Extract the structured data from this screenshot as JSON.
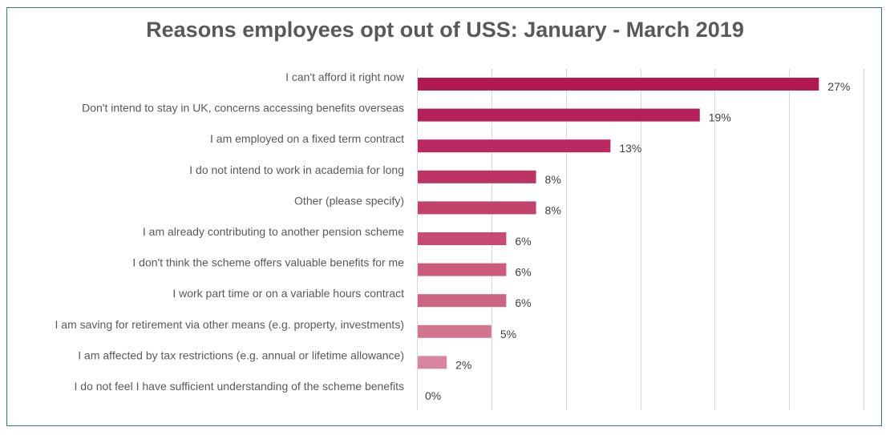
{
  "chart_data": {
    "type": "bar",
    "orientation": "horizontal",
    "title": "Reasons employees opt out of USS: January - March 2019",
    "xlabel": "",
    "ylabel": "",
    "xlim": [
      0,
      30
    ],
    "grid": true,
    "gridline_step": 5,
    "categories": [
      "I can't afford it right now",
      "Don't intend to stay in UK, concerns accessing benefits overseas",
      "I am employed on a fixed term contract",
      "I do not intend to work in academia for long",
      "Other (please specify)",
      "I am already contributing to another pension scheme",
      "I don't think the scheme offers valuable benefits for me",
      "I work part time or on a variable hours contract",
      "I am saving for retirement via other means (e.g. property, investments)",
      "I am affected by tax restrictions (e.g. annual or lifetime allowance)",
      "I do not feel I have sufficient understanding of the scheme benefits"
    ],
    "values": [
      27,
      19,
      13,
      8,
      8,
      6,
      6,
      6,
      5,
      2,
      0
    ],
    "data_labels": [
      "27%",
      "19%",
      "13%",
      "8%",
      "8%",
      "6%",
      "6%",
      "6%",
      "5%",
      "2%",
      "0%"
    ],
    "colors": [
      "#b01a50",
      "#b52058",
      "#b92860",
      "#bd3464",
      "#c2426c",
      "#c74c74",
      "#cb5a7c",
      "#cd6484",
      "#d2758f",
      "#d9849e",
      "#e0a0b4"
    ]
  },
  "frame_color": "#2e7b94",
  "gridline_color": "#d9d9d9"
}
